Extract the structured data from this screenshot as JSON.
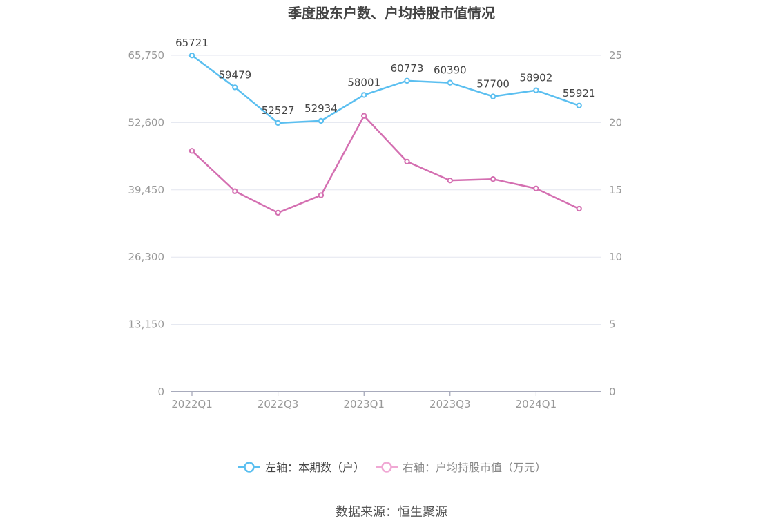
{
  "chart_data": {
    "type": "line",
    "title": "季度股东户数、户均持股市值情况",
    "categories": [
      "2022Q1",
      "2022Q2",
      "2022Q3",
      "2022Q4",
      "2023Q1",
      "2023Q2",
      "2023Q3",
      "2023Q4",
      "2024Q1",
      "2024Q2"
    ],
    "x_tick_labels": [
      "2022Q1",
      "2022Q3",
      "2023Q1",
      "2023Q3",
      "2024Q1"
    ],
    "series": [
      {
        "name": "左轴：本期数（户）",
        "axis": "left",
        "color": "#5bbff0",
        "values": [
          65721,
          59479,
          52527,
          52934,
          58001,
          60773,
          60390,
          57700,
          58902,
          55921
        ],
        "show_labels": true
      },
      {
        "name": "右轴：户均持股市值（万元）",
        "axis": "right",
        "color": "#d46fb1",
        "legend_color": "#f0a8d4",
        "values": [
          17.9,
          14.9,
          13.3,
          14.6,
          20.5,
          17.1,
          15.7,
          15.8,
          15.1,
          13.6
        ],
        "show_labels": false
      }
    ],
    "left_axis": {
      "min": 0,
      "max": 65750,
      "ticks": [
        0,
        13150,
        26300,
        39450,
        52600,
        65750
      ],
      "tick_labels": [
        "0",
        "13,150",
        "26,300",
        "39,450",
        "52,600",
        "65,750"
      ]
    },
    "right_axis": {
      "min": 0,
      "max": 25,
      "ticks": [
        0,
        5,
        10,
        15,
        20,
        25
      ],
      "tick_labels": [
        "0",
        "5",
        "10",
        "15",
        "20",
        "25"
      ]
    },
    "grid": true,
    "legend_position": "bottom"
  },
  "footer": {
    "source": "数据来源：恒生聚源"
  }
}
